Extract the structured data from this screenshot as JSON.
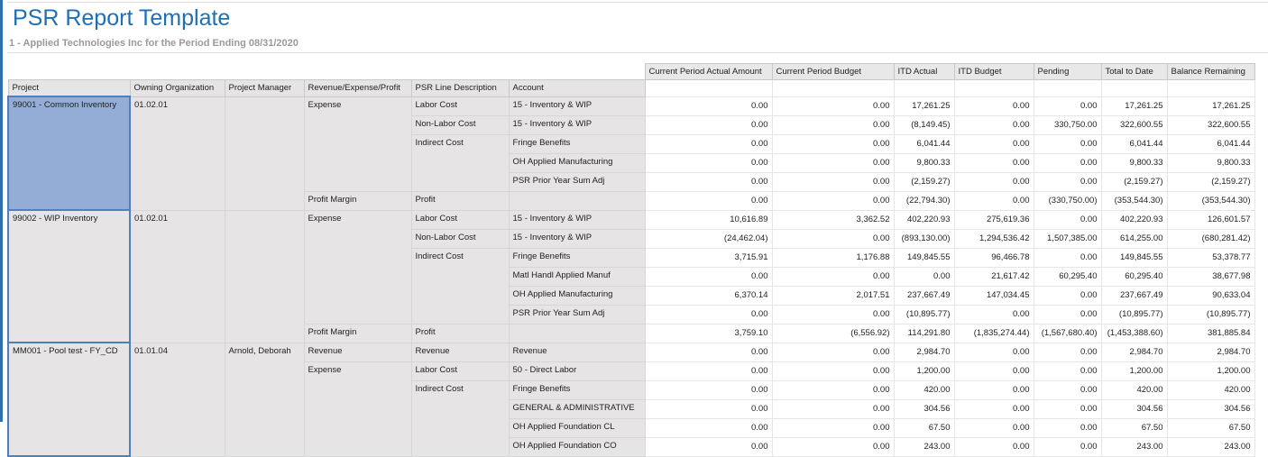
{
  "title": "PSR Report Template",
  "subtitle": "1 - Applied Technologies Inc for the Period Ending 08/31/2020",
  "colors": {
    "title": "#1f6fb2",
    "selected_cell": "#93add6",
    "selection_border": "#4f7fbf"
  },
  "left_headers": [
    "Project",
    "Owning Organization",
    "Project Manager",
    "Revenue/Expense/Profit",
    "PSR Line Description",
    "Account"
  ],
  "value_headers": [
    "Current Period Actual Amount",
    "Current Period Budget",
    "ITD Actual",
    "ITD Budget",
    "Pending",
    "Total to Date",
    "Balance Remaining"
  ],
  "projects": [
    {
      "project": "99001 - Common Inventory",
      "org": "01.02.01",
      "manager": "",
      "selected": true,
      "categories": [
        {
          "name": "Expense",
          "lines": [
            {
              "desc": "Labor Cost",
              "accounts": [
                {
                  "account": "15 - Inventory & WIP",
                  "values": [
                    "0.00",
                    "0.00",
                    "17,261.25",
                    "0.00",
                    "0.00",
                    "17,261.25",
                    "17,261.25"
                  ]
                }
              ]
            },
            {
              "desc": "Non-Labor Cost",
              "accounts": [
                {
                  "account": "15 - Inventory & WIP",
                  "values": [
                    "0.00",
                    "0.00",
                    "(8,149.45)",
                    "0.00",
                    "330,750.00",
                    "322,600.55",
                    "322,600.55"
                  ]
                }
              ]
            },
            {
              "desc": "Indirect Cost",
              "accounts": [
                {
                  "account": "Fringe Benefits",
                  "values": [
                    "0.00",
                    "0.00",
                    "6,041.44",
                    "0.00",
                    "0.00",
                    "6,041.44",
                    "6,041.44"
                  ]
                },
                {
                  "account": "OH Applied Manufacturing",
                  "values": [
                    "0.00",
                    "0.00",
                    "9,800.33",
                    "0.00",
                    "0.00",
                    "9,800.33",
                    "9,800.33"
                  ]
                },
                {
                  "account": "PSR Prior Year Sum Adj",
                  "values": [
                    "0.00",
                    "0.00",
                    "(2,159.27)",
                    "0.00",
                    "0.00",
                    "(2,159.27)",
                    "(2,159.27)"
                  ]
                }
              ]
            }
          ]
        },
        {
          "name": "Profit Margin",
          "lines": [
            {
              "desc": "Profit",
              "accounts": [
                {
                  "account": "",
                  "values": [
                    "0.00",
                    "0.00",
                    "(22,794.30)",
                    "0.00",
                    "(330,750.00)",
                    "(353,544.30)",
                    "(353,544.30)"
                  ]
                }
              ]
            }
          ]
        }
      ]
    },
    {
      "project": "99002 - WIP Inventory",
      "org": "01.02.01",
      "manager": "",
      "selected": false,
      "categories": [
        {
          "name": "Expense",
          "lines": [
            {
              "desc": "Labor Cost",
              "accounts": [
                {
                  "account": "15 - Inventory & WIP",
                  "values": [
                    "10,616.89",
                    "3,362.52",
                    "402,220.93",
                    "275,619.36",
                    "0.00",
                    "402,220.93",
                    "126,601.57"
                  ]
                }
              ]
            },
            {
              "desc": "Non-Labor Cost",
              "accounts": [
                {
                  "account": "15 - Inventory & WIP",
                  "values": [
                    "(24,462.04)",
                    "0.00",
                    "(893,130.00)",
                    "1,294,536.42",
                    "1,507,385.00",
                    "614,255.00",
                    "(680,281.42)"
                  ]
                }
              ]
            },
            {
              "desc": "Indirect Cost",
              "accounts": [
                {
                  "account": "Fringe Benefits",
                  "values": [
                    "3,715.91",
                    "1,176.88",
                    "149,845.55",
                    "96,466.78",
                    "0.00",
                    "149,845.55",
                    "53,378.77"
                  ]
                },
                {
                  "account": "Matl Handl Applied Manuf",
                  "values": [
                    "0.00",
                    "0.00",
                    "0.00",
                    "21,617.42",
                    "60,295.40",
                    "60,295.40",
                    "38,677.98"
                  ]
                },
                {
                  "account": "OH Applied Manufacturing",
                  "values": [
                    "6,370.14",
                    "2,017.51",
                    "237,667.49",
                    "147,034.45",
                    "0.00",
                    "237,667.49",
                    "90,633.04"
                  ]
                },
                {
                  "account": "PSR Prior Year Sum Adj",
                  "values": [
                    "0.00",
                    "0.00",
                    "(10,895.77)",
                    "0.00",
                    "0.00",
                    "(10,895.77)",
                    "(10,895.77)"
                  ]
                }
              ]
            }
          ]
        },
        {
          "name": "Profit Margin",
          "lines": [
            {
              "desc": "Profit",
              "accounts": [
                {
                  "account": "",
                  "values": [
                    "3,759.10",
                    "(6,556.92)",
                    "114,291.80",
                    "(1,835,274.44)",
                    "(1,567,680.40)",
                    "(1,453,388.60)",
                    "381,885.84"
                  ]
                }
              ]
            }
          ]
        }
      ]
    },
    {
      "project": "MM001 - Pool test - FY_CD",
      "org": "01.01.04",
      "manager": "Arnold, Deborah",
      "selected": false,
      "categories": [
        {
          "name": "Revenue",
          "lines": [
            {
              "desc": "Revenue",
              "accounts": [
                {
                  "account": "Revenue",
                  "values": [
                    "0.00",
                    "0.00",
                    "2,984.70",
                    "0.00",
                    "0.00",
                    "2,984.70",
                    "2,984.70"
                  ]
                }
              ]
            }
          ]
        },
        {
          "name": "Expense",
          "lines": [
            {
              "desc": "Labor Cost",
              "accounts": [
                {
                  "account": "50 - Direct Labor",
                  "values": [
                    "0.00",
                    "0.00",
                    "1,200.00",
                    "0.00",
                    "0.00",
                    "1,200.00",
                    "1,200.00"
                  ]
                }
              ]
            },
            {
              "desc": "Indirect Cost",
              "accounts": [
                {
                  "account": "Fringe Benefits",
                  "values": [
                    "0.00",
                    "0.00",
                    "420.00",
                    "0.00",
                    "0.00",
                    "420.00",
                    "420.00"
                  ]
                },
                {
                  "account": "GENERAL & ADMINISTRATIVE",
                  "values": [
                    "0.00",
                    "0.00",
                    "304.56",
                    "0.00",
                    "0.00",
                    "304.56",
                    "304.56"
                  ]
                },
                {
                  "account": "OH Applied Foundation CL",
                  "values": [
                    "0.00",
                    "0.00",
                    "67.50",
                    "0.00",
                    "0.00",
                    "67.50",
                    "67.50"
                  ]
                },
                {
                  "account": "OH Applied Foundation CO",
                  "values": [
                    "0.00",
                    "0.00",
                    "243.00",
                    "0.00",
                    "0.00",
                    "243.00",
                    "243.00"
                  ]
                }
              ]
            }
          ]
        }
      ]
    }
  ]
}
